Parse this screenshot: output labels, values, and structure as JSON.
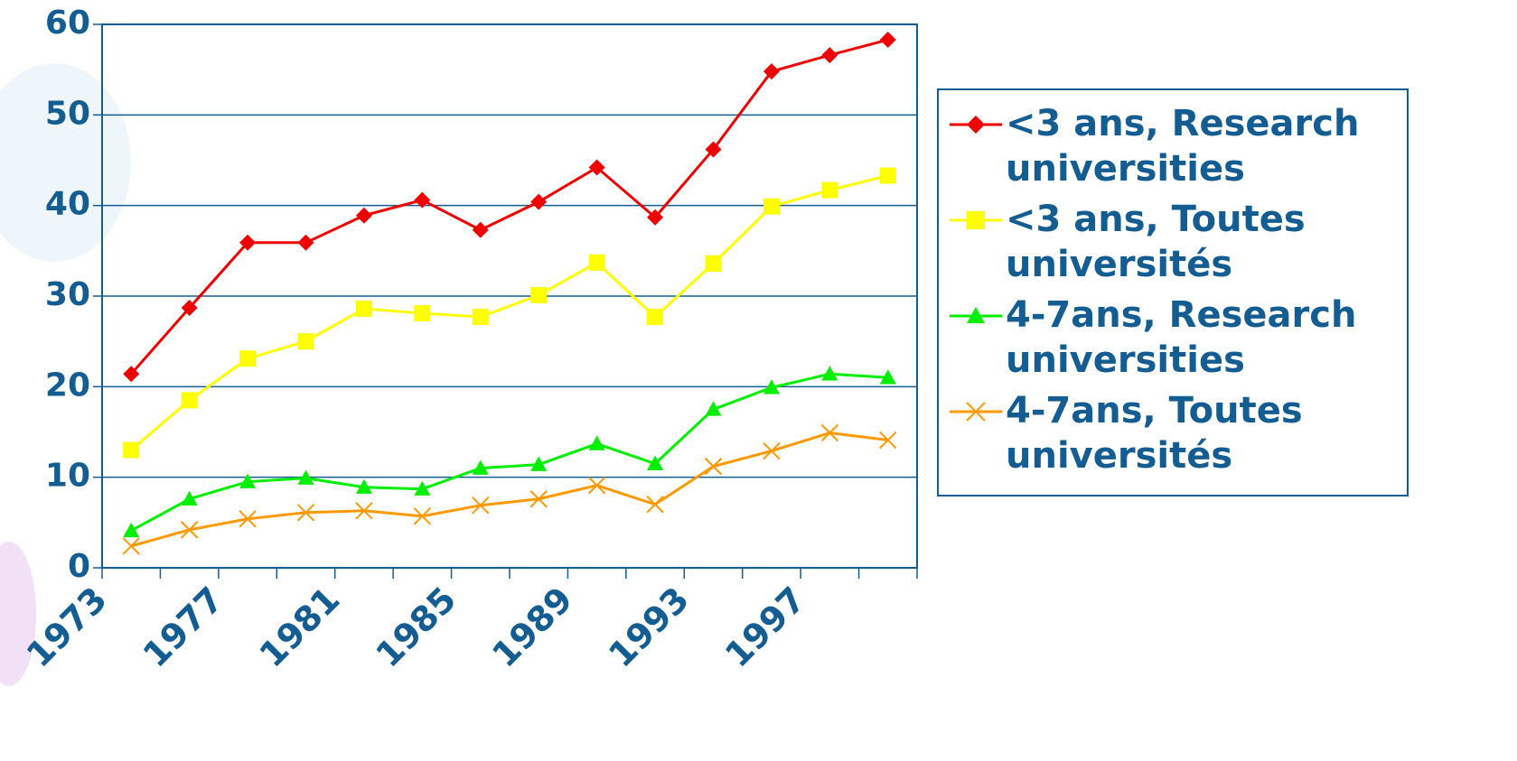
{
  "chart_data": {
    "type": "line",
    "categories": [
      "1973",
      null,
      "1977",
      null,
      "1981",
      null,
      "1985",
      null,
      "1989",
      null,
      "1993",
      null,
      "1997",
      null
    ],
    "series": [
      {
        "name": "<3 ans, Research universities",
        "color": "#ee0000",
        "marker": "diamond",
        "values": [
          21.4,
          28.7,
          35.9,
          35.9,
          38.9,
          40.6,
          37.3,
          40.4,
          44.2,
          38.7,
          46.2,
          54.8,
          56.6,
          58.3
        ]
      },
      {
        "name": "<3 ans, Toutes universités",
        "color": "#ffff00",
        "marker": "square",
        "values": [
          13.0,
          18.5,
          23.1,
          25.0,
          28.6,
          28.1,
          27.7,
          30.1,
          33.7,
          27.7,
          33.6,
          39.9,
          41.7,
          43.3
        ]
      },
      {
        "name": "4-7ans, Research universities",
        "color": "#00ee00",
        "marker": "triangle",
        "values": [
          4.1,
          7.6,
          9.5,
          9.9,
          8.9,
          8.7,
          11.0,
          11.4,
          13.7,
          11.5,
          17.5,
          19.9,
          21.4,
          21.0
        ]
      },
      {
        "name": "4-7ans, Toutes universités",
        "color": "#ff9900",
        "marker": "x",
        "values": [
          2.4,
          4.2,
          5.4,
          6.1,
          6.3,
          5.7,
          6.9,
          7.6,
          9.1,
          7.0,
          11.2,
          12.9,
          14.9,
          14.1
        ]
      }
    ],
    "ylim": [
      0,
      60
    ],
    "yticks": [
      0,
      10,
      20,
      30,
      40,
      50,
      60
    ],
    "grid": true,
    "legend": "right"
  }
}
